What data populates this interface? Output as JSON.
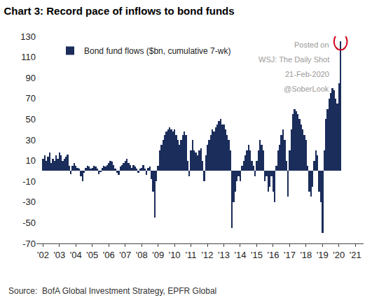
{
  "chart_data": {
    "type": "bar",
    "title": "Chart 3: Record pace of inflows to bond funds",
    "source": "Source:  BofA Global Investment Strategy, EPFR Global",
    "annotations": [
      "Posted on",
      "WSJ: The Daily Shot",
      "21-Feb-2020",
      "@SoberLook"
    ],
    "legend": "upper left",
    "grid": false,
    "x": [
      2002.0,
      2002.1,
      2002.2,
      2002.3,
      2002.4,
      2002.5,
      2002.6,
      2002.7,
      2002.8,
      2002.9,
      2003.0,
      2003.1,
      2003.2,
      2003.3,
      2003.4,
      2003.5,
      2003.6,
      2003.7,
      2003.8,
      2003.9,
      2004.0,
      2004.1,
      2004.2,
      2004.3,
      2004.4,
      2004.5,
      2004.6,
      2004.7,
      2004.8,
      2004.9,
      2005.0,
      2005.1,
      2005.2,
      2005.3,
      2005.4,
      2005.5,
      2005.6,
      2005.7,
      2005.8,
      2005.9,
      2006.0,
      2006.1,
      2006.2,
      2006.3,
      2006.4,
      2006.5,
      2006.6,
      2006.7,
      2006.8,
      2006.9,
      2007.0,
      2007.1,
      2007.2,
      2007.3,
      2007.4,
      2007.5,
      2007.6,
      2007.7,
      2007.8,
      2007.9,
      2008.0,
      2008.1,
      2008.2,
      2008.3,
      2008.4,
      2008.5,
      2008.6,
      2008.7,
      2008.8,
      2008.9,
      2009.0,
      2009.1,
      2009.2,
      2009.3,
      2009.4,
      2009.5,
      2009.6,
      2009.7,
      2009.8,
      2009.9,
      2010.0,
      2010.1,
      2010.2,
      2010.3,
      2010.4,
      2010.5,
      2010.6,
      2010.7,
      2010.8,
      2010.9,
      2011.0,
      2011.1,
      2011.2,
      2011.3,
      2011.4,
      2011.5,
      2011.6,
      2011.7,
      2011.8,
      2011.9,
      2012.0,
      2012.1,
      2012.2,
      2012.3,
      2012.4,
      2012.5,
      2012.6,
      2012.7,
      2012.8,
      2012.9,
      2013.0,
      2013.1,
      2013.2,
      2013.3,
      2013.4,
      2013.5,
      2013.6,
      2013.7,
      2013.8,
      2013.9,
      2014.0,
      2014.1,
      2014.2,
      2014.3,
      2014.4,
      2014.5,
      2014.6,
      2014.7,
      2014.8,
      2014.9,
      2015.0,
      2015.1,
      2015.2,
      2015.3,
      2015.4,
      2015.5,
      2015.6,
      2015.7,
      2015.8,
      2015.9,
      2016.0,
      2016.1,
      2016.2,
      2016.3,
      2016.4,
      2016.5,
      2016.6,
      2016.7,
      2016.8,
      2016.9,
      2017.0,
      2017.1,
      2017.2,
      2017.3,
      2017.4,
      2017.5,
      2017.6,
      2017.7,
      2017.8,
      2017.9,
      2018.0,
      2018.1,
      2018.2,
      2018.3,
      2018.4,
      2018.5,
      2018.6,
      2018.7,
      2018.8,
      2018.9,
      2019.0,
      2019.1,
      2019.2,
      2019.3,
      2019.4,
      2019.5,
      2019.6,
      2019.7,
      2019.8,
      2019.9,
      2020.0,
      2020.1
    ],
    "series": [
      {
        "name": "Bond fund flows ($bn, cumulative 7-wk)",
        "color": "#1b2d5b",
        "values": [
          12,
          15,
          10,
          14,
          18,
          8,
          12,
          10,
          15,
          12,
          18,
          15,
          10,
          12,
          14,
          16,
          5,
          -3,
          5,
          8,
          5,
          3,
          2,
          -5,
          -10,
          -2,
          3,
          5,
          4,
          2,
          3,
          5,
          4,
          2,
          -3,
          -1,
          3,
          5,
          4,
          6,
          8,
          10,
          9,
          6,
          2,
          -2,
          -4,
          4,
          6,
          8,
          10,
          12,
          8,
          6,
          3,
          6,
          4,
          2,
          -2,
          2,
          3,
          6,
          2,
          -4,
          3,
          4,
          -8,
          -20,
          -45,
          -10,
          5,
          20,
          25,
          30,
          35,
          38,
          40,
          42,
          40,
          38,
          40,
          35,
          30,
          25,
          30,
          35,
          38,
          35,
          10,
          -5,
          20,
          30,
          20,
          18,
          15,
          20,
          22,
          10,
          -10,
          15,
          25,
          30,
          35,
          40,
          38,
          42,
          45,
          48,
          50,
          45,
          45,
          40,
          35,
          30,
          20,
          -55,
          -30,
          -20,
          -10,
          -5,
          -10,
          5,
          10,
          15,
          20,
          25,
          20,
          10,
          5,
          -5,
          10,
          20,
          30,
          25,
          20,
          -10,
          -5,
          -20,
          -15,
          -5,
          -20,
          -30,
          5,
          20,
          25,
          35,
          40,
          30,
          10,
          -25,
          20,
          40,
          55,
          60,
          58,
          55,
          50,
          45,
          40,
          35,
          30,
          5,
          -20,
          -25,
          -15,
          10,
          20,
          15,
          -20,
          -30,
          -60,
          20,
          50,
          60,
          70,
          75,
          80,
          78,
          70,
          65,
          85,
          125
        ]
      }
    ],
    "xlim": [
      2001.6,
      2021.5
    ],
    "xticks": [
      {
        "value": 2002,
        "label": "'02"
      },
      {
        "value": 2003,
        "label": "'03"
      },
      {
        "value": 2004,
        "label": "'04"
      },
      {
        "value": 2005,
        "label": "'05"
      },
      {
        "value": 2006,
        "label": "'06"
      },
      {
        "value": 2007,
        "label": "'07"
      },
      {
        "value": 2008,
        "label": "'08"
      },
      {
        "value": 2009,
        "label": "'09"
      },
      {
        "value": 2010,
        "label": "'10"
      },
      {
        "value": 2011,
        "label": "'11"
      },
      {
        "value": 2012,
        "label": "'12"
      },
      {
        "value": 2013,
        "label": "'13"
      },
      {
        "value": 2014,
        "label": "'14"
      },
      {
        "value": 2015,
        "label": "'15"
      },
      {
        "value": 2016,
        "label": "'16"
      },
      {
        "value": 2017,
        "label": "'17"
      },
      {
        "value": 2018,
        "label": "'18"
      },
      {
        "value": 2019,
        "label": "'19"
      },
      {
        "value": 2020,
        "label": "'20"
      },
      {
        "value": 2021,
        "label": "'21"
      }
    ],
    "ylim": [
      -70,
      130
    ],
    "yticks": [
      -70,
      -50,
      -30,
      -10,
      10,
      30,
      50,
      70,
      90,
      110,
      130
    ]
  }
}
